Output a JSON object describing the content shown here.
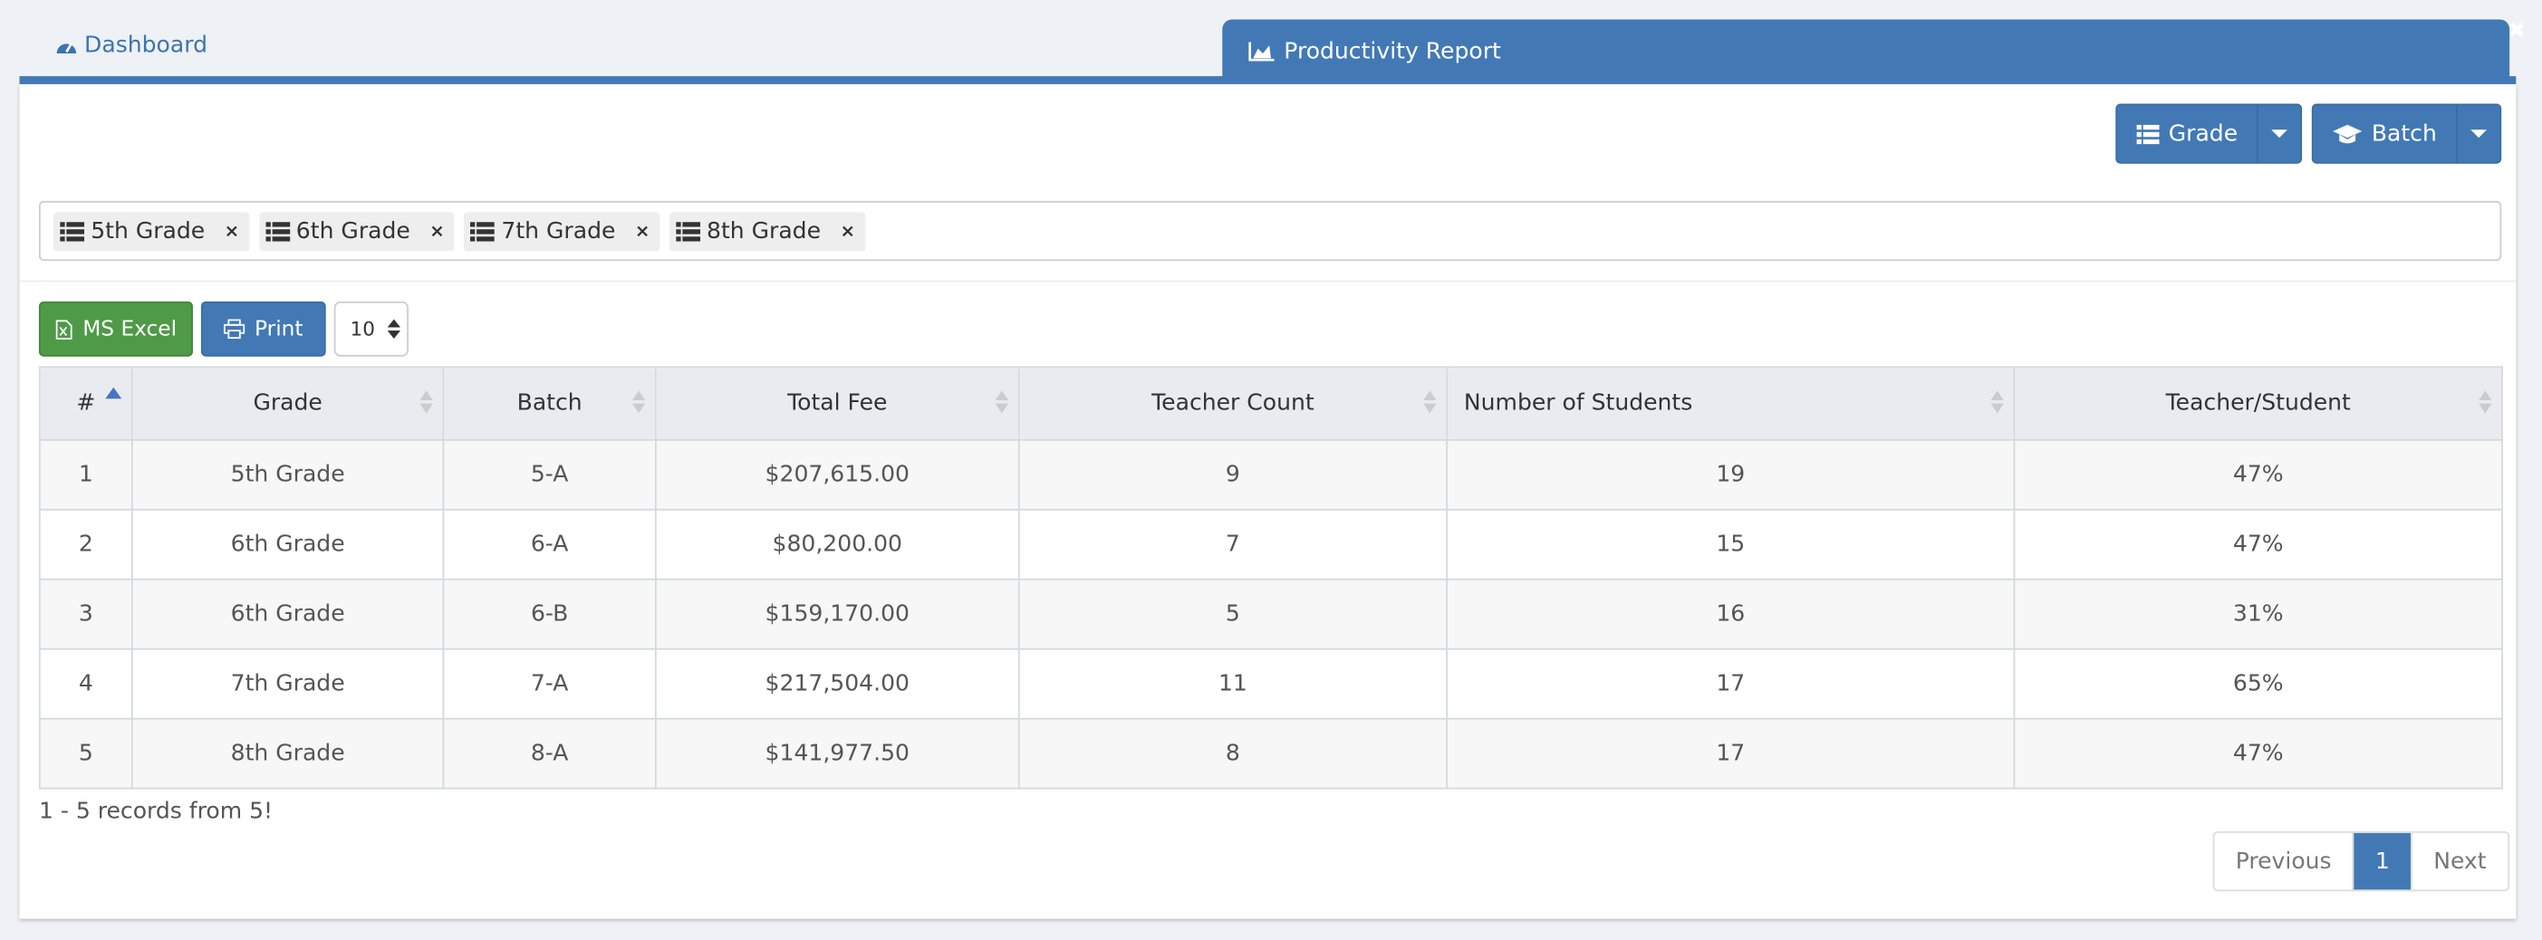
{
  "tabs": {
    "dashboard": "Dashboard",
    "active": "Productivity Report"
  },
  "toolbar": {
    "grade": "Grade",
    "batch": "Batch"
  },
  "filters": [
    "5th Grade",
    "6th Grade",
    "7th Grade",
    "8th Grade"
  ],
  "buttons": {
    "excel": "MS Excel",
    "print": "Print",
    "page_size": "10"
  },
  "table": {
    "columns": [
      "#",
      "Grade",
      "Batch",
      "Total Fee",
      "Teacher Count",
      "Number of Students",
      "Teacher/Student"
    ],
    "rows": [
      [
        "1",
        "5th Grade",
        "5-A",
        "$207,615.00",
        "9",
        "19",
        "47%"
      ],
      [
        "2",
        "6th Grade",
        "6-A",
        "$80,200.00",
        "7",
        "15",
        "47%"
      ],
      [
        "3",
        "6th Grade",
        "6-B",
        "$159,170.00",
        "5",
        "16",
        "31%"
      ],
      [
        "4",
        "7th Grade",
        "7-A",
        "$217,504.00",
        "11",
        "17",
        "65%"
      ],
      [
        "5",
        "8th Grade",
        "8-A",
        "$141,977.50",
        "8",
        "17",
        "47%"
      ]
    ]
  },
  "footer": {
    "records": "1 - 5 records from 5!"
  },
  "pagination": [
    "Previous",
    "1",
    "Next"
  ]
}
